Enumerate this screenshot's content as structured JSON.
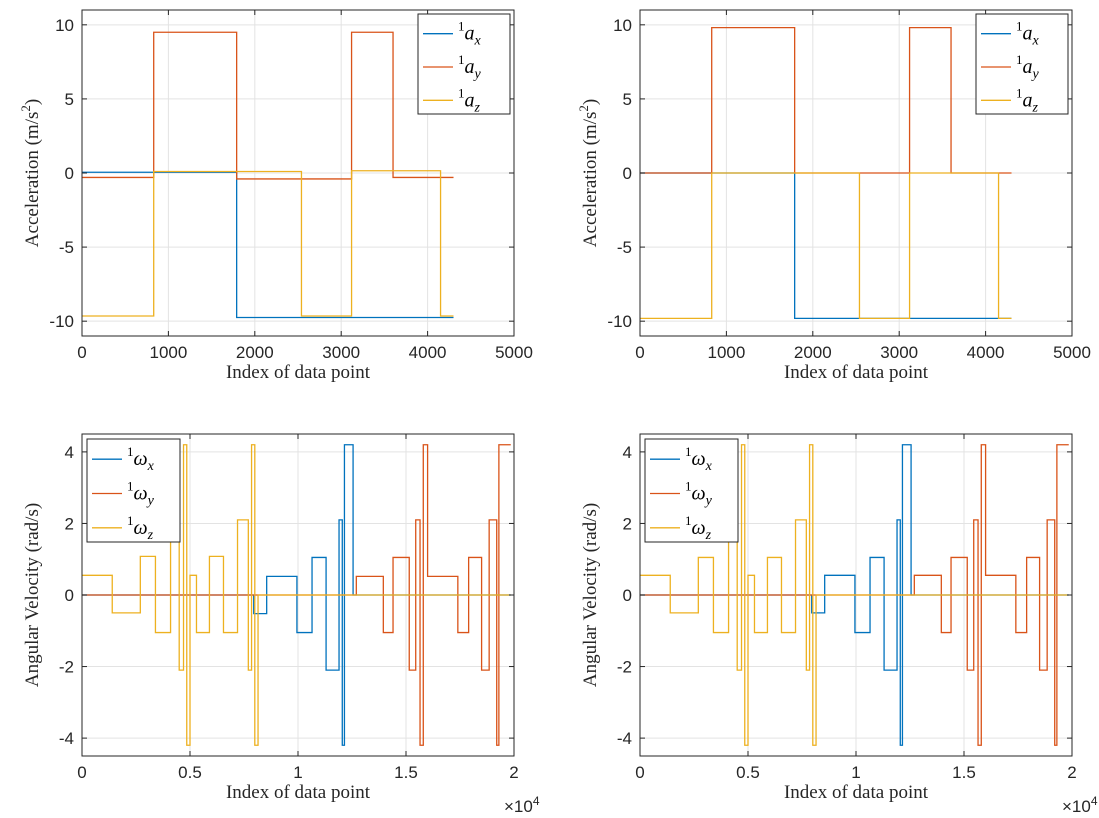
{
  "colors": {
    "blue": "#0072BD",
    "red": "#D95319",
    "yellow": "#EDB120",
    "axis": "#262626",
    "grid": "#e3e3e3"
  },
  "chart_data": [
    {
      "type": "line",
      "xlabel": "Index of data point",
      "ylabel": "Acceleration (m/s²)",
      "ylabel_base": "Acceleration (m/s",
      "ylabel_sup": "2",
      "ylabel_close": ")",
      "xlim": [
        0,
        5000
      ],
      "ylim": [
        -11,
        11
      ],
      "xticks": [
        0,
        1000,
        2000,
        3000,
        4000,
        5000
      ],
      "xtick_labels": [
        "0",
        "1000",
        "2000",
        "3000",
        "4000",
        "5000"
      ],
      "yticks": [
        -10,
        -5,
        0,
        5,
        10
      ],
      "ytick_labels": [
        "-10",
        "-5",
        "0",
        "5",
        "10"
      ],
      "grid": true,
      "legend_position": "top-right",
      "series": [
        {
          "name": "¹a_x",
          "sup": "1",
          "base": "a",
          "sub": "x",
          "color": "#0072BD",
          "x": [
            0,
            1790,
            1790,
            3600,
            3600,
            4300
          ],
          "y": [
            0.05,
            0.05,
            -9.75,
            -9.75,
            -9.75,
            -9.75
          ]
        },
        {
          "name": "¹a_y",
          "sup": "1",
          "base": "a",
          "sub": "y",
          "color": "#D95319",
          "x": [
            0,
            830,
            830,
            1790,
            1790,
            3120,
            3120,
            3600,
            3600,
            4300
          ],
          "y": [
            -0.3,
            -0.3,
            9.5,
            9.5,
            -0.4,
            -0.4,
            9.5,
            9.5,
            -0.3,
            -0.3
          ]
        },
        {
          "name": "¹a_z",
          "sup": "1",
          "base": "a",
          "sub": "z",
          "color": "#EDB120",
          "x": [
            0,
            830,
            830,
            2540,
            2540,
            3120,
            3120,
            4150,
            4150,
            4300
          ],
          "y": [
            -9.65,
            -9.65,
            0.1,
            0.1,
            -9.65,
            -9.65,
            0.15,
            0.15,
            -9.65,
            -9.65
          ]
        }
      ]
    },
    {
      "type": "line",
      "xlabel": "Index of data point",
      "ylabel": "Acceleration (m/s²)",
      "ylabel_base": "Acceleration (m/s",
      "ylabel_sup": "2",
      "ylabel_close": ")",
      "xlim": [
        0,
        5000
      ],
      "ylim": [
        -11,
        11
      ],
      "xticks": [
        0,
        1000,
        2000,
        3000,
        4000,
        5000
      ],
      "xtick_labels": [
        "0",
        "1000",
        "2000",
        "3000",
        "4000",
        "5000"
      ],
      "yticks": [
        -10,
        -5,
        0,
        5,
        10
      ],
      "ytick_labels": [
        "-10",
        "-5",
        "0",
        "5",
        "10"
      ],
      "grid": true,
      "legend_position": "top-right",
      "series": [
        {
          "name": "¹a_x",
          "sup": "1",
          "base": "a",
          "sub": "x",
          "color": "#0072BD",
          "x": [
            0,
            1790,
            1790,
            3600,
            3600,
            4300
          ],
          "y": [
            0,
            0,
            -9.81,
            -9.81,
            -9.81,
            -9.81
          ]
        },
        {
          "name": "¹a_y",
          "sup": "1",
          "base": "a",
          "sub": "y",
          "color": "#D95319",
          "x": [
            0,
            830,
            830,
            1790,
            1790,
            3120,
            3120,
            3600,
            3600,
            4300
          ],
          "y": [
            0,
            0,
            9.81,
            9.81,
            0,
            0,
            9.81,
            9.81,
            0,
            0
          ]
        },
        {
          "name": "¹a_z",
          "sup": "1",
          "base": "a",
          "sub": "z",
          "color": "#EDB120",
          "x": [
            0,
            830,
            830,
            2540,
            2540,
            3120,
            3120,
            4150,
            4150,
            4300
          ],
          "y": [
            -9.81,
            -9.81,
            0,
            0,
            -9.81,
            -9.81,
            0,
            0,
            -9.81,
            -9.81
          ]
        }
      ]
    },
    {
      "type": "line",
      "xlabel": "Index of data point",
      "ylabel": "Angular Velocity (rad/s)",
      "x_exponent_base": "×10",
      "x_exponent_power": "4",
      "xlim": [
        0,
        2
      ],
      "ylim": [
        -4.5,
        4.5
      ],
      "xticks": [
        0,
        0.5,
        1,
        1.5,
        2
      ],
      "xtick_labels": [
        "0",
        "0.5",
        "1",
        "1.5",
        "2"
      ],
      "yticks": [
        -4,
        -2,
        0,
        2,
        4
      ],
      "ytick_labels": [
        "-4",
        "-2",
        "0",
        "2",
        "4"
      ],
      "grid": true,
      "legend_position": "top-left",
      "series": [
        {
          "name": "¹ω_x",
          "sup": "1",
          "base": "ω",
          "sub": "x",
          "color": "#0072BD",
          "x": [
            0,
            0.795,
            0.795,
            0.855,
            0.855,
            0.995,
            0.995,
            1.065,
            1.065,
            1.13,
            1.13,
            1.19,
            1.19,
            1.205,
            1.205,
            1.215,
            1.215,
            1.255,
            1.255,
            1.985
          ],
          "y": [
            0,
            0,
            -0.52,
            -0.52,
            0.52,
            0.52,
            -1.05,
            -1.05,
            1.05,
            1.05,
            -2.1,
            -2.1,
            2.1,
            2.1,
            -4.2,
            -4.2,
            4.2,
            4.2,
            0,
            0
          ]
        },
        {
          "name": "¹ω_y",
          "sup": "1",
          "base": "ω",
          "sub": "y",
          "color": "#D95319",
          "x": [
            0,
            1.27,
            1.27,
            1.395,
            1.395,
            1.44,
            1.44,
            1.515,
            1.515,
            1.545,
            1.545,
            1.565,
            1.565,
            1.58,
            1.58,
            1.6,
            1.6,
            1.74,
            1.74,
            1.79,
            1.79,
            1.85,
            1.85,
            1.885,
            1.885,
            1.92,
            1.92,
            1.93,
            1.93,
            1.985
          ],
          "y": [
            0,
            0,
            0.52,
            0.52,
            -1.05,
            -1.05,
            1.05,
            1.05,
            -2.1,
            -2.1,
            2.1,
            2.1,
            -4.2,
            -4.2,
            4.2,
            4.2,
            0.52,
            0.52,
            -1.05,
            -1.05,
            1.05,
            1.05,
            -2.1,
            -2.1,
            2.1,
            2.1,
            -4.2,
            -4.2,
            4.2,
            4.2
          ]
        },
        {
          "name": "¹ω_z",
          "sup": "1",
          "base": "ω",
          "sub": "z",
          "color": "#EDB120",
          "x": [
            0,
            0.14,
            0.14,
            0.27,
            0.27,
            0.34,
            0.34,
            0.41,
            0.41,
            0.45,
            0.45,
            0.47,
            0.47,
            0.485,
            0.485,
            0.5,
            0.5,
            0.53,
            0.53,
            0.59,
            0.59,
            0.655,
            0.655,
            0.72,
            0.72,
            0.77,
            0.77,
            0.785,
            0.785,
            0.8,
            0.8,
            0.815,
            0.815,
            1.985
          ],
          "y": [
            0.55,
            0.55,
            -0.5,
            -0.5,
            1.08,
            1.08,
            -1.05,
            -1.05,
            2.1,
            2.1,
            -2.1,
            -2.1,
            4.2,
            4.2,
            -4.2,
            -4.2,
            0.55,
            0.55,
            -1.05,
            -1.05,
            1.08,
            1.08,
            -1.05,
            -1.05,
            2.1,
            2.1,
            -2.1,
            -2.1,
            4.2,
            4.2,
            -4.2,
            -4.2,
            0,
            0
          ]
        }
      ]
    },
    {
      "type": "line",
      "xlabel": "Index of data point",
      "ylabel": "Angular Velocity (rad/s)",
      "x_exponent_base": "×10",
      "x_exponent_power": "4",
      "xlim": [
        0,
        2
      ],
      "ylim": [
        -4.5,
        4.5
      ],
      "xticks": [
        0,
        0.5,
        1,
        1.5,
        2
      ],
      "xtick_labels": [
        "0",
        "0.5",
        "1",
        "1.5",
        "2"
      ],
      "yticks": [
        -4,
        -2,
        0,
        2,
        4
      ],
      "ytick_labels": [
        "-4",
        "-2",
        "0",
        "2",
        "4"
      ],
      "grid": true,
      "legend_position": "top-left",
      "series": [
        {
          "name": "¹ω_x",
          "sup": "1",
          "base": "ω",
          "sub": "x",
          "color": "#0072BD",
          "x": [
            0,
            0.795,
            0.795,
            0.855,
            0.855,
            0.995,
            0.995,
            1.065,
            1.065,
            1.13,
            1.13,
            1.19,
            1.19,
            1.205,
            1.205,
            1.215,
            1.215,
            1.255,
            1.255,
            1.985
          ],
          "y": [
            0,
            0,
            -0.5,
            -0.5,
            0.55,
            0.55,
            -1.05,
            -1.05,
            1.05,
            1.05,
            -2.1,
            -2.1,
            2.1,
            2.1,
            -4.2,
            -4.2,
            4.2,
            4.2,
            0,
            0
          ]
        },
        {
          "name": "¹ω_y",
          "sup": "1",
          "base": "ω",
          "sub": "y",
          "color": "#D95319",
          "x": [
            0,
            1.27,
            1.27,
            1.395,
            1.395,
            1.44,
            1.44,
            1.515,
            1.515,
            1.545,
            1.545,
            1.565,
            1.565,
            1.58,
            1.58,
            1.6,
            1.6,
            1.74,
            1.74,
            1.79,
            1.79,
            1.85,
            1.85,
            1.885,
            1.885,
            1.92,
            1.92,
            1.93,
            1.93,
            1.985
          ],
          "y": [
            0,
            0,
            0.55,
            0.55,
            -1.05,
            -1.05,
            1.05,
            1.05,
            -2.1,
            -2.1,
            2.1,
            2.1,
            -4.2,
            -4.2,
            4.2,
            4.2,
            0.55,
            0.55,
            -1.05,
            -1.05,
            1.05,
            1.05,
            -2.1,
            -2.1,
            2.1,
            2.1,
            -4.2,
            -4.2,
            4.2,
            4.2
          ]
        },
        {
          "name": "¹ω_z",
          "sup": "1",
          "base": "ω",
          "sub": "z",
          "color": "#EDB120",
          "x": [
            0,
            0.14,
            0.14,
            0.27,
            0.27,
            0.34,
            0.34,
            0.41,
            0.41,
            0.45,
            0.45,
            0.47,
            0.47,
            0.485,
            0.485,
            0.5,
            0.5,
            0.53,
            0.53,
            0.59,
            0.59,
            0.655,
            0.655,
            0.72,
            0.72,
            0.77,
            0.77,
            0.785,
            0.785,
            0.8,
            0.8,
            0.815,
            0.815,
            1.985
          ],
          "y": [
            0.55,
            0.55,
            -0.5,
            -0.5,
            1.05,
            1.05,
            -1.05,
            -1.05,
            2.1,
            2.1,
            -2.1,
            -2.1,
            4.2,
            4.2,
            -4.2,
            -4.2,
            0.55,
            0.55,
            -1.05,
            -1.05,
            1.05,
            1.05,
            -1.05,
            -1.05,
            2.1,
            2.1,
            -2.1,
            -2.1,
            4.2,
            4.2,
            -4.2,
            -4.2,
            0,
            0
          ]
        }
      ]
    }
  ]
}
